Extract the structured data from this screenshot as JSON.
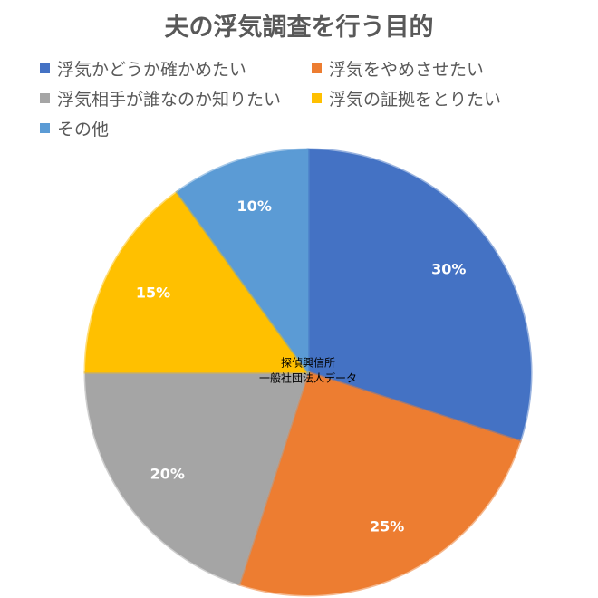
{
  "chart_data": {
    "type": "pie",
    "title": "夫の浮気調査を行う目的",
    "categories": [
      "浮気かどうか確かめたい",
      "浮気をやめさせたい",
      "浮気相手が誰なのか知りたい",
      "浮気の証拠をとりたい",
      "その他"
    ],
    "values": [
      30,
      25,
      20,
      15,
      10
    ],
    "data_labels": [
      "30%",
      "25%",
      "20%",
      "15%",
      "10%"
    ],
    "colors": [
      "#4472C4",
      "#ED7D31",
      "#A5A5A5",
      "#FFC000",
      "#5B9BD5"
    ],
    "legend_position": "top",
    "annotation": [
      "探偵興信所",
      "一般社団法人データ"
    ]
  }
}
